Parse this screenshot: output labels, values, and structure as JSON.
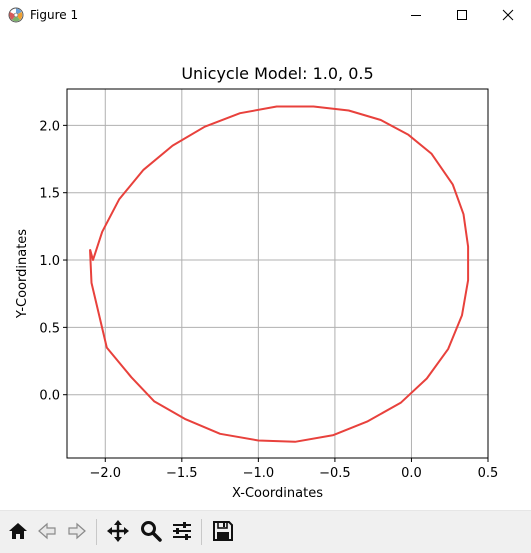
{
  "window": {
    "title": "Figure 1",
    "icons": [
      "matplotlib-icon",
      "minimize-icon",
      "maximize-icon",
      "close-icon"
    ]
  },
  "chart_data": {
    "type": "line",
    "title": "Unicycle Model: 1.0, 0.5",
    "xlabel": "X-Coordinates",
    "ylabel": "Y-Coordinates",
    "xlim": [
      -2.25,
      0.5
    ],
    "ylim": [
      -0.47,
      2.27
    ],
    "xticks": [
      -2.0,
      -1.5,
      -1.0,
      -0.5,
      0.0,
      0.5
    ],
    "xtick_labels": [
      "−2.0",
      "−1.5",
      "−1.0",
      "−0.5",
      "0.0",
      "0.5"
    ],
    "yticks": [
      0.0,
      0.5,
      1.0,
      1.5,
      2.0
    ],
    "ytick_labels": [
      "0.0",
      "0.5",
      "1.0",
      "1.5",
      "2.0"
    ],
    "grid": true,
    "color": "#e8413c",
    "series": [
      {
        "x": [
          -2.1,
          -2.09,
          -1.99,
          -1.83,
          -1.68,
          -1.48,
          -1.25,
          -1.0,
          -0.76,
          -0.51,
          -0.29,
          -0.07,
          0.1,
          0.24,
          0.33,
          0.37,
          0.37,
          0.34,
          0.27,
          0.13,
          -0.02,
          -0.2,
          -0.41,
          -0.64,
          -0.88,
          -1.12,
          -1.35,
          -1.56,
          -1.75,
          -1.91,
          -2.02,
          -2.08,
          -2.1
        ],
        "y": [
          1.08,
          0.83,
          0.35,
          0.13,
          -0.05,
          -0.18,
          -0.29,
          -0.34,
          -0.35,
          -0.3,
          -0.2,
          -0.06,
          0.12,
          0.34,
          0.59,
          0.85,
          1.1,
          1.34,
          1.56,
          1.79,
          1.93,
          2.04,
          2.11,
          2.14,
          2.14,
          2.09,
          1.99,
          1.85,
          1.67,
          1.45,
          1.21,
          1.0,
          1.08
        ]
      }
    ]
  },
  "toolbar": {
    "buttons": [
      "home-icon",
      "back-icon",
      "forward-icon",
      "pan-icon",
      "zoom-icon",
      "configure-subplots-icon",
      "save-icon"
    ]
  }
}
